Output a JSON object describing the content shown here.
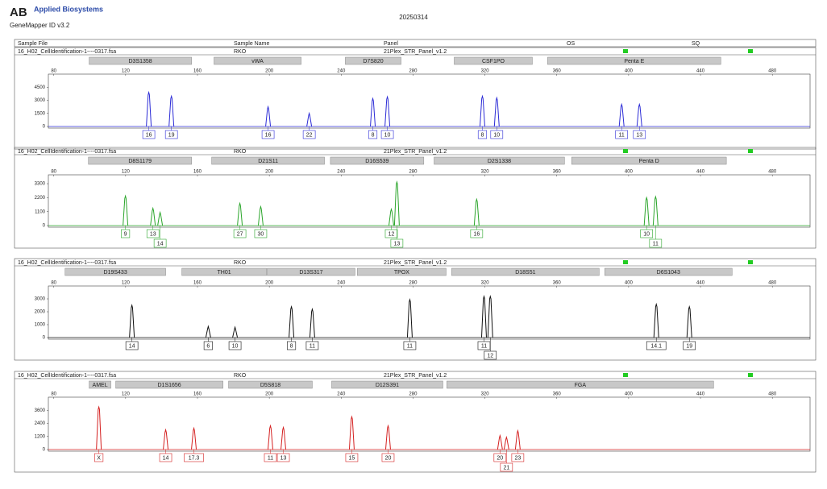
{
  "header": {
    "logo": "Applied Biosystems",
    "software": "GeneMapper ID v3.2",
    "date": "20250314",
    "columns": [
      "Sample File",
      "Sample Name",
      "Panel",
      "OS",
      "SQ"
    ]
  },
  "chart_data": [
    {
      "type": "peaks",
      "sample_file": "16_H02_CellIdentification-1----0317.fsa",
      "sample_name": "RKO",
      "panel": "21Plex_STR_Panel_v1.2",
      "color": "#2b2bd6",
      "xlim": [
        77,
        501
      ],
      "xticks": [
        80,
        120,
        160,
        200,
        240,
        280,
        320,
        360,
        400,
        440,
        480
      ],
      "ylim": [
        0,
        6000
      ],
      "yticks": [
        0,
        1500,
        3000,
        4500
      ],
      "loci": {
        "names": [
          "D3S1358",
          "vWA",
          "D7S820",
          "CSF1PO",
          "Penta E"
        ],
        "start": [
          99.7,
          169.2,
          242.3,
          302.9,
          354.9
        ],
        "end": [
          156.7,
          217.7,
          273.3,
          346.4,
          451.3
        ]
      },
      "x": [
        132.9,
        145.5,
        199.3,
        222.2,
        257.6,
        265.7,
        318.6,
        326.6,
        396.1,
        406
      ],
      "values": [
        3900,
        3470,
        2250,
        1500,
        3200,
        3400,
        3470,
        3280,
        2530,
        2530
      ],
      "labels": [
        "16",
        "19",
        "16",
        "22",
        "8",
        "10",
        "8",
        "10",
        "11",
        "13"
      ]
    },
    {
      "type": "peaks",
      "sample_file": "16_H02_CellIdentification-1----0317.fsa",
      "sample_name": "RKO",
      "panel": "21Plex_STR_Panel_v1.2",
      "color": "#2aa52a",
      "xlim": [
        77,
        501
      ],
      "xticks": [
        80,
        120,
        160,
        200,
        240,
        280,
        320,
        360,
        400,
        440,
        480
      ],
      "ylim": [
        0,
        4000
      ],
      "yticks": [
        0,
        1100,
        2200,
        3300
      ],
      "loci": {
        "names": [
          "D8S1179",
          "D21S11",
          "D16S539",
          "D2S1338",
          "Penta D"
        ],
        "start": [
          99.3,
          167.9,
          234,
          291.7,
          368.3
        ],
        "end": [
          156.7,
          230.7,
          286,
          364.3,
          454.4
        ]
      },
      "x": [
        119.9,
        135.2,
        139.2,
        183.6,
        195.2,
        267.9,
        271,
        315.4,
        410,
        415
      ],
      "values": [
        2330,
        1360,
        1035,
        1750,
        1490,
        1290,
        3430,
        2070,
        2200,
        2270
      ],
      "labels": [
        "9",
        "13",
        "14",
        "27",
        "30",
        "12",
        "13",
        "16",
        "10",
        "11"
      ]
    },
    {
      "type": "peaks",
      "sample_file": "16_H02_CellIdentification-1----0317.fsa",
      "sample_name": "RKO",
      "panel": "21Plex_STR_Panel_v1.2",
      "color": "#111111",
      "xlim": [
        77,
        501
      ],
      "xticks": [
        80,
        120,
        160,
        200,
        240,
        280,
        320,
        360,
        400,
        440,
        480
      ],
      "ylim": [
        0,
        4000
      ],
      "yticks": [
        0,
        1000,
        2000,
        3000
      ],
      "loci": {
        "names": [
          "D19S433",
          "TH01",
          "D13S317",
          "TPOX",
          "D18S51",
          "D6S1043"
        ],
        "start": [
          86.3,
          151.3,
          198.8,
          249,
          301.5,
          386.7
        ],
        "end": [
          142.3,
          198.4,
          247.7,
          298.4,
          383.6,
          457.6
        ]
      },
      "x": [
        123.5,
        166,
        180.9,
        212.3,
        223.9,
        278.2,
        319.5,
        323,
        415.4,
        433.8
      ],
      "values": [
        2500,
        860,
        800,
        2390,
        2200,
        2940,
        3190,
        3190,
        2580,
        2390
      ],
      "labels": [
        "14",
        "6",
        "10",
        "8",
        "11",
        "11",
        "11",
        "12",
        "14.1",
        "19"
      ]
    },
    {
      "type": "peaks",
      "sample_file": "16_H02_CellIdentification-1----0317.fsa",
      "sample_name": "RKO",
      "panel": "21Plex_STR_Panel_v1.2",
      "color": "#d42020",
      "xlim": [
        77,
        501
      ],
      "xticks": [
        80,
        120,
        160,
        200,
        240,
        280,
        320,
        360,
        400,
        440,
        480
      ],
      "ylim": [
        0,
        4800
      ],
      "yticks": [
        0,
        1200,
        2400,
        3600
      ],
      "loci": {
        "names": [
          "AMEL",
          "D1S1656",
          "D5S818",
          "D12S391",
          "FGA"
        ],
        "start": [
          99.7,
          114.5,
          177.3,
          234.7,
          298.8
        ],
        "end": [
          111.8,
          174.2,
          223.9,
          296.6,
          447.3
        ]
      },
      "x": [
        105.1,
        142.3,
        158,
        200.6,
        207.8,
        245.9,
        266.1,
        328.4,
        332,
        338.3
      ],
      "values": [
        3900,
        1800,
        1950,
        2175,
        2025,
        3000,
        2175,
        1275,
        1125,
        1725
      ],
      "labels": [
        "X",
        "14",
        "17.3",
        "11",
        "13",
        "15",
        "20",
        "20",
        "21",
        "23"
      ]
    }
  ]
}
